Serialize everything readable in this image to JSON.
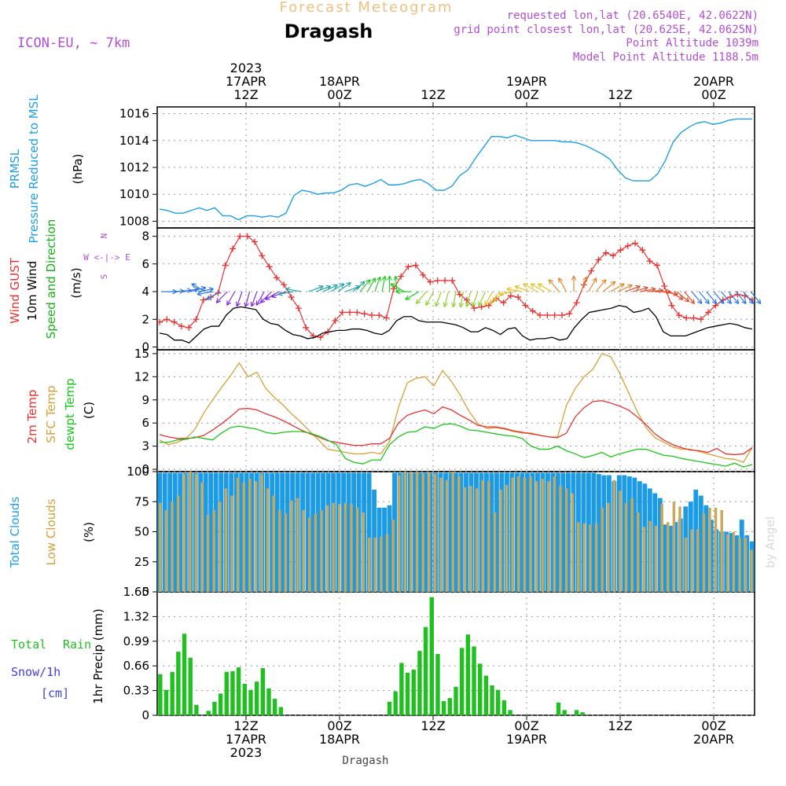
{
  "header": {
    "title": "Forecast Meteogram",
    "location": "Dragash",
    "model": "ICON-EU, ~ 7km",
    "requested": "requested lon,lat (20.6540E, 42.0622N)",
    "grid_point": "grid point closest lon,lat (20.625E, 42.0625N)",
    "point_altitude": "Point Altitude 1039m",
    "model_altitude": "Model Point Altitude 1188.5m",
    "footer_location": "Dragash",
    "watermark": "by Angel"
  },
  "time_axis": {
    "top_labels": [
      [
        "2023",
        "17APR",
        "12Z"
      ],
      [
        "18APR",
        "00Z"
      ],
      [
        "12Z"
      ],
      [
        "19APR",
        "00Z"
      ],
      [
        "12Z"
      ],
      [
        "20APR",
        "00Z"
      ]
    ],
    "bottom_labels": [
      [
        "12Z",
        "17APR",
        "2023"
      ],
      [
        "00Z",
        "18APR"
      ],
      [
        "12Z"
      ],
      [
        "00Z",
        "19APR"
      ],
      [
        "12Z"
      ],
      [
        "00Z",
        "20APR"
      ]
    ]
  },
  "panel_labels": {
    "pressure": [
      "PRMSL",
      "Pressure Reduced to MSL",
      "(hPa)"
    ],
    "wind": [
      "Wind GUST",
      "10m Wind",
      "Speed and Direction",
      "(m/s)"
    ],
    "compass": [
      "N",
      "W <-|-> E",
      "S"
    ],
    "temp": [
      "2m Temp",
      "SFC Temp",
      "dewpt Temp",
      "(C)"
    ],
    "clouds": [
      "Total Clouds",
      "Low Clouds",
      "(%)"
    ],
    "precip": [
      "Total",
      "Rain",
      "Snow/1h",
      "[cm]",
      "1hr Precip (mm)"
    ]
  },
  "colors": {
    "pressure": "#1e9ee6",
    "gust": "#e83232",
    "wind": "#000000",
    "temp2m": "#e83232",
    "sfc": "#d4a23a",
    "dewpt": "#18c818",
    "total_clouds": "#1b9ae6",
    "low_clouds": "#c8a85a",
    "rain": "#20c020",
    "snow": "#4040e0",
    "title": "#f0c080",
    "purple": "#b050d0"
  },
  "chart_data": [
    {
      "type": "line",
      "name": "pressure",
      "ylim": [
        1007.5,
        1016.5
      ],
      "yticks": [
        1008,
        1010,
        1012,
        1014,
        1016
      ],
      "series": [
        {
          "name": "PRMSL",
          "values": [
            1008.9,
            1008.8,
            1008.6,
            1008.6,
            1008.8,
            1009.0,
            1008.8,
            1009.0,
            1008.4,
            1008.4,
            1008.1,
            1008.4,
            1008.4,
            1008.3,
            1008.4,
            1008.3,
            1008.6,
            1009.9,
            1010.3,
            1010.2,
            1010.0,
            1010.1,
            1010.1,
            1010.3,
            1010.7,
            1010.8,
            1010.6,
            1010.8,
            1011.1,
            1010.7,
            1010.7,
            1010.8,
            1011.0,
            1011.1,
            1010.8,
            1010.3,
            1010.3,
            1010.6,
            1011.4,
            1011.8,
            1012.7,
            1013.5,
            1014.3,
            1014.3,
            1014.2,
            1014.4,
            1014.2,
            1014.0,
            1014.0,
            1014.0,
            1014.0,
            1013.9,
            1013.9,
            1013.8,
            1013.6,
            1013.3,
            1013.0,
            1012.6,
            1011.8,
            1011.2,
            1011.0,
            1011.0,
            1011.0,
            1011.5,
            1012.5,
            1013.9,
            1014.6,
            1015.0,
            1015.3,
            1015.4,
            1015.2,
            1015.3,
            1015.5,
            1015.6,
            1015.6,
            1015.6
          ]
        }
      ]
    },
    {
      "type": "line",
      "name": "wind",
      "ylim": [
        -0.2,
        8.6
      ],
      "yticks": [
        0,
        2,
        4,
        6,
        8
      ],
      "series": [
        {
          "name": "Wind GUST",
          "values": [
            1.8,
            2.0,
            1.8,
            1.5,
            1.4,
            2.0,
            3.4,
            3.6,
            3.9,
            5.9,
            7.1,
            8.0,
            8.0,
            7.6,
            6.6,
            5.8,
            5.0,
            4.5,
            3.6,
            2.8,
            1.4,
            0.8,
            0.7,
            1.1,
            1.9,
            2.5,
            2.5,
            2.5,
            2.4,
            2.3,
            2.3,
            2.1,
            4.2,
            5.1,
            5.8,
            5.9,
            5.2,
            4.7,
            4.8,
            4.8,
            4.8,
            3.8,
            3.4,
            2.8,
            2.9,
            3.0,
            3.5,
            3.2,
            3.7,
            3.6,
            3.0,
            2.6,
            2.3,
            2.3,
            2.3,
            2.3,
            2.4,
            3.2,
            4.5,
            5.5,
            6.3,
            6.8,
            6.6,
            7.0,
            7.3,
            7.5,
            7.0,
            6.2,
            5.9,
            4.4,
            3.0,
            2.3,
            2.1,
            2.1,
            2.0,
            2.5,
            3.0,
            3.4,
            3.6,
            3.8,
            3.7,
            3.4
          ]
        },
        {
          "name": "10m Wind",
          "values": [
            1.0,
            0.9,
            0.5,
            0.5,
            0.3,
            0.8,
            1.3,
            1.5,
            1.5,
            2.3,
            2.8,
            2.9,
            2.8,
            2.7,
            2.0,
            1.7,
            1.6,
            1.2,
            0.9,
            0.8,
            0.6,
            0.7,
            1.0,
            1.1,
            1.2,
            1.2,
            1.3,
            1.3,
            1.2,
            1.0,
            0.9,
            1.2,
            1.9,
            2.2,
            2.2,
            1.9,
            1.8,
            1.8,
            1.8,
            1.7,
            1.6,
            1.4,
            1.1,
            1.1,
            1.4,
            1.2,
            0.9,
            1.3,
            1.4,
            0.8,
            0.5,
            0.6,
            0.6,
            0.7,
            0.5,
            0.6,
            1.4,
            2.0,
            2.5,
            2.6,
            2.7,
            2.8,
            3.0,
            2.9,
            2.5,
            2.6,
            2.8,
            2.2,
            1.1,
            0.8,
            0.8,
            0.8,
            1.0,
            1.2,
            1.4,
            1.5,
            1.6,
            1.7,
            1.6,
            1.4,
            1.3
          ]
        }
      ]
    },
    {
      "type": "line",
      "name": "temperature",
      "ylim": [
        -0.3,
        15.5
      ],
      "yticks": [
        0,
        3,
        6,
        9,
        12,
        15
      ],
      "series": [
        {
          "name": "2m Temp",
          "values": [
            4.5,
            4.2,
            4.0,
            4.0,
            4.1,
            4.4,
            5.1,
            5.9,
            6.8,
            7.8,
            7.9,
            7.7,
            7.2,
            6.8,
            6.3,
            5.7,
            5.1,
            4.6,
            4.2,
            3.7,
            3.5,
            3.3,
            3.1,
            3.1,
            3.3,
            3.3,
            4.0,
            6.0,
            7.0,
            7.4,
            7.7,
            7.2,
            8.1,
            7.7,
            7.0,
            6.4,
            5.7,
            5.5,
            5.5,
            5.3,
            5.0,
            4.8,
            4.6,
            4.4,
            4.2,
            4.1,
            4.7,
            6.8,
            8.0,
            8.8,
            8.9,
            8.6,
            8.2,
            7.7,
            6.8,
            5.8,
            4.6,
            3.8,
            3.2,
            2.8,
            2.5,
            2.4,
            2.2,
            2.7,
            2.0,
            1.9,
            2.0,
            2.8
          ]
        },
        {
          "name": "SFC Temp",
          "values": [
            3.8,
            3.2,
            3.5,
            4.0,
            5.2,
            7.3,
            9.0,
            10.6,
            12.1,
            13.8,
            12.0,
            12.6,
            10.5,
            9.3,
            8.3,
            7.1,
            6.1,
            4.9,
            3.8,
            2.6,
            2.4,
            2.2,
            2.0,
            2.0,
            2.2,
            2.0,
            3.6,
            8.0,
            11.2,
            11.8,
            12.0,
            10.8,
            12.8,
            11.4,
            9.6,
            7.5,
            5.9,
            5.3,
            5.4,
            5.2,
            4.9,
            4.7,
            4.7,
            4.4,
            4.2,
            4.2,
            8.3,
            10.5,
            12.0,
            13.0,
            15.0,
            14.6,
            12.5,
            10.0,
            7.5,
            5.4,
            4.1,
            3.5,
            2.9,
            2.6,
            2.6,
            2.3,
            2.0,
            1.7,
            1.4,
            1.3,
            0.9,
            2.8
          ]
        },
        {
          "name": "dewpt Temp",
          "values": [
            3.5,
            3.5,
            3.8,
            3.9,
            4.2,
            4.0,
            3.8,
            4.7,
            5.4,
            5.6,
            5.4,
            5.2,
            4.8,
            4.6,
            4.8,
            4.9,
            4.9,
            4.7,
            4.3,
            3.8,
            3.2,
            1.4,
            0.9,
            0.7,
            1.2,
            1.2,
            3.2,
            4.2,
            4.8,
            4.9,
            5.5,
            5.3,
            5.8,
            5.9,
            5.6,
            5.1,
            5.0,
            4.8,
            4.6,
            4.4,
            4.3,
            4.0,
            3.0,
            2.6,
            2.6,
            3.0,
            2.4,
            2.0,
            1.5,
            1.8,
            2.2,
            1.6,
            2.0,
            2.3,
            2.6,
            2.6,
            2.2,
            1.8,
            1.7,
            1.4,
            1.2,
            1.0,
            0.8,
            0.6,
            0.4,
            0.8,
            0.3,
            0.6
          ]
        }
      ]
    },
    {
      "type": "bar",
      "name": "clouds",
      "ylim": [
        0,
        100
      ],
      "yticks": [
        0,
        25,
        50,
        75,
        100
      ],
      "series": [
        {
          "name": "Total Clouds",
          "values": [
            99,
            99,
            99,
            99,
            99,
            99,
            99,
            99,
            99,
            99,
            99,
            99,
            99,
            99,
            99,
            99,
            99,
            99,
            99,
            99,
            99,
            99,
            99,
            99,
            99,
            99,
            99,
            99,
            99,
            99,
            99,
            99,
            99,
            99,
            99,
            99,
            99,
            99,
            99,
            99,
            99,
            99,
            85,
            70,
            70,
            72,
            99,
            99,
            99,
            99,
            99,
            99,
            99,
            99,
            99,
            99,
            99,
            99,
            99,
            99,
            99,
            99,
            99,
            99,
            99,
            99,
            99,
            99,
            99,
            99,
            99,
            99,
            99,
            99,
            99,
            99,
            99,
            99,
            99,
            99,
            99,
            99,
            99,
            99,
            99,
            99,
            98,
            97,
            97,
            92,
            97,
            97,
            96,
            95,
            92,
            90,
            86,
            82,
            78,
            56,
            55,
            58,
            61,
            71,
            75,
            85,
            80,
            72,
            60,
            52,
            50,
            50,
            49,
            47,
            60,
            47,
            42
          ]
        },
        {
          "name": "Low Clouds",
          "values": [
            74,
            68,
            75,
            80,
            98,
            100,
            98,
            91,
            64,
            68,
            75,
            86,
            80,
            95,
            91,
            94,
            92,
            98,
            86,
            80,
            68,
            65,
            76,
            78,
            68,
            62,
            65,
            68,
            72,
            74,
            73,
            74,
            73,
            70,
            66,
            45,
            45,
            46,
            48,
            60,
            97,
            100,
            99,
            100,
            98,
            99,
            98,
            95,
            93,
            100,
            96,
            87,
            88,
            86,
            93,
            92,
            66,
            85,
            89,
            95,
            96,
            95,
            96,
            92,
            94,
            92,
            96,
            88,
            86,
            82,
            58,
            57,
            56,
            57,
            70,
            74,
            93,
            84,
            74,
            78,
            66,
            54,
            59,
            55,
            73,
            58,
            75,
            71,
            45,
            52,
            52,
            65,
            70,
            70,
            68,
            48,
            50,
            45,
            45,
            35
          ]
        }
      ]
    },
    {
      "type": "bar",
      "name": "precipitation",
      "ylim": [
        0,
        1.65
      ],
      "yticks": [
        0,
        0.33,
        0.66,
        0.99,
        1.32,
        1.65
      ],
      "series": [
        {
          "name": "Total Rain",
          "values": [
            0.55,
            0.34,
            0.58,
            0.85,
            1.09,
            0.77,
            0.14,
            0,
            0.06,
            0.18,
            0.29,
            0.58,
            0.59,
            0.64,
            0.42,
            0.34,
            0.45,
            0.63,
            0.36,
            0.22,
            0.11,
            0,
            0,
            0,
            0,
            0,
            0,
            0,
            0,
            0,
            0,
            0,
            0,
            0,
            0,
            0,
            0,
            0,
            0.18,
            0.32,
            0.7,
            0.57,
            0.61,
            0.86,
            1.18,
            1.58,
            0.82,
            0.19,
            0.23,
            0.38,
            0.9,
            1.08,
            0.92,
            0.69,
            0.53,
            0.4,
            0.34,
            0.2,
            0.07,
            0,
            0,
            0,
            0,
            0,
            0,
            0,
            0.17,
            0.07,
            0,
            0.07,
            0.04,
            0,
            0,
            0,
            0,
            0,
            0,
            0,
            0,
            0,
            0,
            0,
            0,
            0,
            0,
            0,
            0,
            0,
            0,
            0,
            0,
            0,
            0,
            0,
            0,
            0,
            0,
            0,
            0
          ]
        }
      ]
    },
    {
      "type": "line",
      "name": "wind_direction_arrows",
      "series": [
        {
          "name": "direction_deg",
          "values": [
            270,
            268,
            265,
            260,
            255,
            260,
            120,
            80,
            60,
            45,
            30,
            20,
            15,
            20,
            30,
            45,
            60,
            70,
            80,
            100,
            250,
            250,
            245,
            240,
            235,
            250,
            230,
            220,
            210,
            200,
            190,
            180,
            175,
            120,
            90,
            60,
            40,
            30,
            20,
            15,
            10,
            10,
            15,
            20,
            25,
            30,
            40,
            60,
            80,
            100,
            110,
            120,
            120,
            120,
            140,
            150,
            180,
            200,
            210,
            220,
            230,
            240,
            245,
            250,
            255,
            260,
            265,
            270,
            280,
            300,
            310,
            320,
            320,
            320,
            320,
            320,
            320,
            320,
            320,
            320,
            320
          ]
        }
      ]
    }
  ]
}
